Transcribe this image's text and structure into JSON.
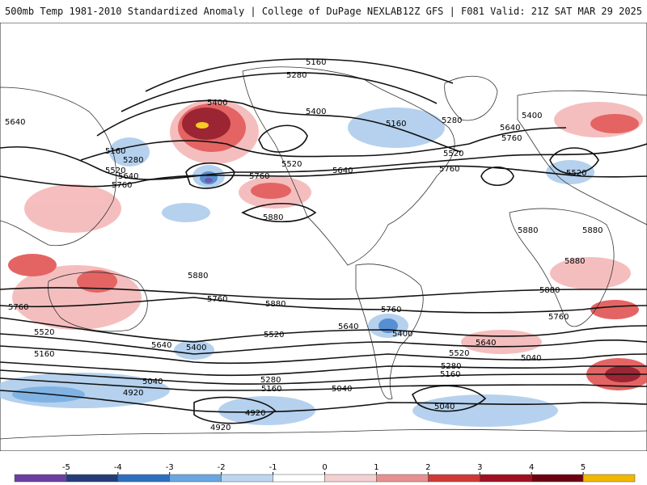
{
  "header": {
    "left": "500mb Temp 1981-2010 Standardized Anomaly | College of DuPage NEXLAB",
    "right": "12Z GFS | F081 Valid: 21Z SAT MAR 29 2025"
  },
  "map": {
    "contour_labels": [
      "5160",
      "5280",
      "5400",
      "5520",
      "5640",
      "5760",
      "5880",
      "5040",
      "4920"
    ],
    "anomaly_colors": {
      "strong_warm": "#8b0010",
      "warm": "#e04a4a",
      "mild_warm": "#f4b3b3",
      "cool": "#a9c9ec",
      "strong_cool": "#3a7ccc",
      "extreme_cool": "#5b3c9e",
      "extreme_warm": "#f5c400"
    }
  },
  "colorbar": {
    "ticks": [
      "-5",
      "-4",
      "-3",
      "-2",
      "-1",
      "0",
      "1",
      "2",
      "3",
      "4",
      "5"
    ],
    "colors": [
      "#6a3fa0",
      "#243c78",
      "#2c6fc0",
      "#6aa6e0",
      "#bcd6f0",
      "#ffffff",
      "#f5d0d0",
      "#e89090",
      "#d03838",
      "#a01020",
      "#6e0010",
      "#f0b800"
    ]
  }
}
